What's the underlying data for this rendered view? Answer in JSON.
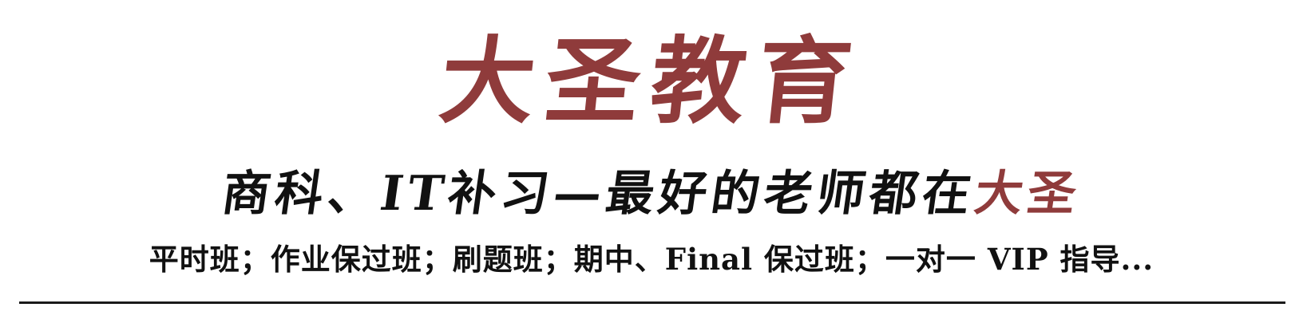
{
  "brand": {
    "title": "大圣教育",
    "accent_color": "#8f3b3b"
  },
  "slogan": {
    "main": "商科、IT补习—最好的老师都在",
    "highlight": "大圣"
  },
  "classes": {
    "text": "平时班；作业保过班；刷题班；期中、Final 保过班；一对一 VIP 指导..."
  }
}
